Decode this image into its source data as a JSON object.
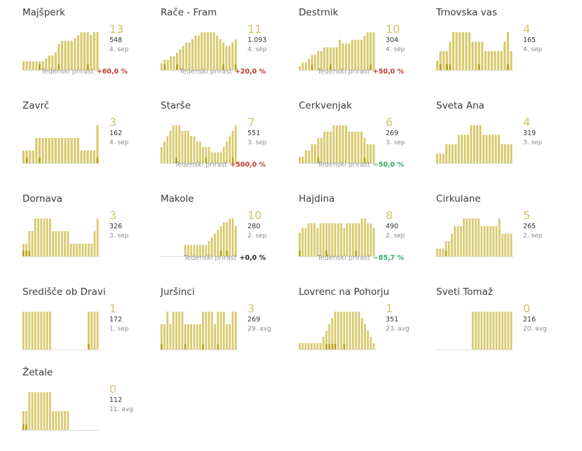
{
  "colors": {
    "bar": "#d8c86a",
    "highlight": "#b9a11a",
    "baseline": "#dddddd"
  },
  "chart_data": [
    {
      "type": "bar",
      "title": "Majšperk",
      "latest": "13",
      "total": "548",
      "date": "4. sep",
      "growth_label": "Tedenski prirast",
      "growth_value": "+60,0 %",
      "growth_sign": "pos",
      "values": [
        3,
        3,
        3,
        3,
        3,
        3,
        3,
        4,
        5,
        5,
        6,
        9,
        10,
        10,
        10,
        10,
        11,
        12,
        13,
        13,
        13,
        12,
        13,
        13
      ],
      "highlight": [
        0,
        0,
        0,
        0,
        0,
        1,
        0,
        0,
        0,
        0,
        0,
        1,
        0,
        0,
        0,
        0,
        0,
        0,
        0,
        0,
        1,
        0,
        0,
        0
      ]
    },
    {
      "type": "bar",
      "title": "Rače - Fram",
      "latest": "11",
      "total": "1.093",
      "date": "4. sep",
      "growth_label": "Tedenski prirast",
      "growth_value": "+20,0 %",
      "growth_sign": "pos",
      "values": [
        2,
        3,
        3,
        4,
        4,
        5,
        6,
        7,
        8,
        8,
        9,
        10,
        10,
        11,
        11,
        11,
        11,
        11,
        10,
        9,
        8,
        7,
        7,
        8,
        9
      ],
      "highlight": [
        0,
        1,
        0,
        0,
        0,
        1,
        0,
        0,
        0,
        0,
        0,
        0,
        0,
        0,
        0,
        0,
        0,
        0,
        0,
        0,
        1,
        0,
        0,
        0,
        1
      ]
    },
    {
      "type": "bar",
      "title": "Destrnik",
      "latest": "10",
      "total": "304",
      "date": "4. sep",
      "growth_label": "Tedenski prirast",
      "growth_value": "+50,0 %",
      "growth_sign": "pos",
      "values": [
        1,
        2,
        2,
        3,
        4,
        4,
        5,
        5,
        6,
        6,
        6,
        6,
        6,
        8,
        7,
        7,
        7,
        8,
        8,
        8,
        8,
        9,
        10,
        10,
        10
      ],
      "highlight": [
        0,
        0,
        0,
        0,
        1,
        0,
        0,
        0,
        0,
        0,
        1,
        0,
        0,
        0,
        0,
        0,
        0,
        0,
        0,
        0,
        0,
        0,
        0,
        1,
        0
      ]
    },
    {
      "type": "bar",
      "title": "Trnovska vas",
      "latest": "4",
      "total": "165",
      "date": "4. sep",
      "growth_label": "",
      "growth_value": "",
      "growth_sign": "",
      "values": [
        1,
        2,
        2,
        2,
        3,
        4,
        4,
        4,
        4,
        4,
        4,
        3,
        3,
        3,
        3,
        2,
        2,
        2,
        2,
        2,
        2,
        3,
        4,
        2
      ],
      "highlight": [
        0,
        1,
        0,
        1,
        1,
        0,
        0,
        0,
        0,
        0,
        0,
        0,
        0,
        1,
        0,
        0,
        0,
        0,
        0,
        0,
        0,
        0,
        1,
        0
      ]
    },
    {
      "type": "bar",
      "title": "Zavrč",
      "latest": "3",
      "total": "162",
      "date": "4. sep",
      "growth_label": "",
      "growth_value": "",
      "growth_sign": "",
      "values": [
        1,
        1,
        1,
        1,
        2,
        2,
        2,
        2,
        2,
        2,
        2,
        2,
        2,
        2,
        2,
        2,
        2,
        2,
        1,
        1,
        1,
        1,
        1,
        3
      ],
      "highlight": [
        0,
        1,
        0,
        0,
        0,
        1,
        0,
        0,
        0,
        0,
        0,
        0,
        0,
        0,
        0,
        0,
        0,
        0,
        0,
        0,
        0,
        0,
        0,
        1
      ]
    },
    {
      "type": "bar",
      "title": "Starše",
      "latest": "7",
      "total": "551",
      "date": "3. sep",
      "growth_label": "Tedenski prirast",
      "growth_value": "+500,0 %",
      "growth_sign": "pos",
      "values": [
        3,
        4,
        5,
        6,
        7,
        7,
        7,
        6,
        6,
        6,
        5,
        5,
        4,
        4,
        3,
        3,
        3,
        2,
        2,
        2,
        2,
        3,
        4,
        5,
        6,
        7
      ],
      "highlight": [
        0,
        0,
        0,
        0,
        0,
        1,
        0,
        0,
        0,
        0,
        0,
        0,
        0,
        0,
        0,
        1,
        0,
        0,
        0,
        0,
        0,
        0,
        0,
        0,
        1,
        0
      ]
    },
    {
      "type": "bar",
      "title": "Cerkvenjak",
      "latest": "6",
      "total": "269",
      "date": "3. sep",
      "growth_label": "Tedenski prirast",
      "growth_value": "−50,0 %",
      "growth_sign": "neg",
      "values": [
        1,
        1,
        2,
        2,
        3,
        3,
        4,
        4,
        5,
        5,
        5,
        6,
        6,
        6,
        6,
        6,
        5,
        5,
        5,
        5,
        5,
        4,
        3,
        3,
        3
      ],
      "highlight": [
        0,
        0,
        0,
        0,
        0,
        0,
        1,
        0,
        0,
        0,
        0,
        0,
        0,
        0,
        0,
        0,
        0,
        0,
        0,
        0,
        0,
        1,
        0,
        0,
        0
      ]
    },
    {
      "type": "bar",
      "title": "Sveta Ana",
      "latest": "4",
      "total": "319",
      "date": "3. sep",
      "growth_label": "",
      "growth_value": "",
      "growth_sign": "",
      "values": [
        1,
        1,
        1,
        2,
        2,
        2,
        2,
        3,
        3,
        3,
        3,
        4,
        4,
        4,
        4,
        3,
        3,
        3,
        3,
        3,
        3,
        2,
        2,
        2,
        2
      ],
      "highlight": [
        0,
        0,
        0,
        0,
        0,
        0,
        0,
        0,
        0,
        0,
        0,
        0,
        0,
        0,
        0,
        0,
        0,
        0,
        0,
        0,
        0,
        0,
        0,
        0,
        0
      ]
    },
    {
      "type": "bar",
      "title": "Dornava",
      "latest": "3",
      "total": "326",
      "date": "3. sep",
      "growth_label": "",
      "growth_value": "",
      "growth_sign": "",
      "values": [
        1,
        1,
        2,
        2,
        3,
        3,
        3,
        3,
        3,
        3,
        2,
        2,
        2,
        2,
        2,
        2,
        1,
        1,
        1,
        1,
        1,
        1,
        1,
        1,
        2,
        3
      ],
      "highlight": [
        1,
        1,
        1,
        0,
        0,
        0,
        0,
        0,
        0,
        0,
        0,
        0,
        0,
        0,
        0,
        0,
        0,
        0,
        0,
        0,
        0,
        0,
        0,
        0,
        0,
        0
      ]
    },
    {
      "type": "bar",
      "title": "Makole",
      "latest": "10",
      "total": "280",
      "date": "2. sep",
      "growth_label": "Tedenski prirast",
      "growth_value": "+0,0 %",
      "growth_sign": "zero",
      "values": [
        0,
        0,
        0,
        0,
        0,
        0,
        0,
        0,
        3,
        3,
        3,
        3,
        3,
        3,
        3,
        3,
        4,
        5,
        6,
        7,
        8,
        9,
        9,
        10,
        10,
        8
      ],
      "highlight": [
        0,
        0,
        0,
        0,
        0,
        0,
        0,
        0,
        0,
        0,
        0,
        0,
        0,
        0,
        0,
        0,
        0,
        0,
        0,
        0,
        1,
        0,
        1,
        0,
        0,
        0
      ]
    },
    {
      "type": "bar",
      "title": "Hajdina",
      "latest": "8",
      "total": "490",
      "date": "2. sep",
      "growth_label": "Tedenski prirast",
      "growth_value": "−85,7 %",
      "growth_sign": "neg",
      "values": [
        5,
        6,
        6,
        7,
        7,
        7,
        6,
        7,
        7,
        7,
        7,
        7,
        7,
        7,
        7,
        6,
        7,
        7,
        7,
        7,
        7,
        8,
        8,
        7,
        7,
        6
      ],
      "highlight": [
        1,
        0,
        0,
        0,
        0,
        0,
        0,
        0,
        0,
        1,
        0,
        0,
        0,
        0,
        0,
        0,
        0,
        0,
        0,
        1,
        0,
        0,
        0,
        0,
        0,
        0
      ]
    },
    {
      "type": "bar",
      "title": "Cirkulane",
      "latest": "5",
      "total": "265",
      "date": "2. sep",
      "growth_label": "",
      "growth_value": "",
      "growth_sign": "",
      "values": [
        1,
        1,
        1,
        2,
        2,
        3,
        4,
        4,
        4,
        5,
        5,
        5,
        5,
        5,
        5,
        4,
        4,
        4,
        4,
        4,
        4,
        5,
        3,
        3,
        3,
        3
      ],
      "highlight": [
        0,
        0,
        0,
        1,
        0,
        0,
        0,
        0,
        0,
        0,
        0,
        0,
        0,
        0,
        0,
        0,
        0,
        0,
        0,
        0,
        0,
        0,
        0,
        0,
        0,
        0
      ]
    },
    {
      "type": "bar",
      "title": "Središče ob Dravi",
      "latest": "1",
      "total": "172",
      "date": "1. sep",
      "growth_label": "",
      "growth_value": "",
      "growth_sign": "",
      "values": [
        1,
        1,
        1,
        1,
        1,
        1,
        1,
        1,
        1,
        1,
        0,
        0,
        0,
        0,
        0,
        0,
        0,
        0,
        0,
        0,
        0,
        0,
        1,
        1,
        1,
        1
      ],
      "highlight": [
        0,
        0,
        0,
        0,
        0,
        0,
        0,
        0,
        0,
        0,
        0,
        0,
        0,
        0,
        0,
        0,
        0,
        0,
        0,
        0,
        0,
        0,
        1,
        0,
        0,
        0
      ]
    },
    {
      "type": "bar",
      "title": "Juršinci",
      "latest": "3",
      "total": "269",
      "date": "29. avg",
      "growth_label": "",
      "growth_value": "",
      "growth_sign": "",
      "values": [
        2,
        2,
        3,
        2,
        3,
        3,
        3,
        3,
        2,
        2,
        2,
        2,
        2,
        2,
        3,
        3,
        3,
        3,
        2,
        3,
        3,
        3,
        2,
        2,
        3,
        3
      ],
      "highlight": [
        1,
        0,
        0,
        0,
        0,
        0,
        0,
        0,
        1,
        0,
        0,
        0,
        0,
        0,
        1,
        0,
        0,
        0,
        0,
        1,
        0,
        0,
        0,
        0,
        0,
        0
      ]
    },
    {
      "type": "bar",
      "title": "Lovrenc na Pohorju",
      "latest": "1",
      "total": "351",
      "date": "23. avg",
      "growth_label": "",
      "growth_value": "",
      "growth_sign": "",
      "values": [
        1,
        1,
        1,
        1,
        1,
        1,
        1,
        1,
        2,
        3,
        4,
        5,
        6,
        6,
        6,
        6,
        6,
        6,
        6,
        6,
        6,
        5,
        4,
        3,
        2,
        1
      ],
      "highlight": [
        0,
        0,
        0,
        0,
        0,
        0,
        0,
        0,
        0,
        1,
        1,
        1,
        1,
        0,
        0,
        1,
        0,
        0,
        0,
        0,
        0,
        0,
        0,
        0,
        0,
        0
      ]
    },
    {
      "type": "bar",
      "title": "Sveti Tomaž",
      "latest": "0",
      "total": "216",
      "date": "20. avg",
      "growth_label": "",
      "growth_value": "",
      "growth_sign": "",
      "values": [
        0,
        0,
        0,
        0,
        0,
        0,
        0,
        0,
        0,
        0,
        0,
        0,
        1,
        1,
        1,
        1,
        1,
        1,
        1,
        1,
        1,
        1,
        1,
        1,
        1,
        1
      ],
      "highlight": [
        0,
        0,
        0,
        0,
        0,
        0,
        0,
        0,
        0,
        0,
        0,
        0,
        0,
        0,
        0,
        0,
        0,
        0,
        0,
        0,
        0,
        0,
        0,
        0,
        0,
        0
      ]
    },
    {
      "type": "bar",
      "title": "Žetale",
      "latest": "0",
      "total": "112",
      "date": "11. avg",
      "growth_label": "",
      "growth_value": "",
      "growth_sign": "",
      "values": [
        1,
        1,
        2,
        2,
        2,
        2,
        2,
        2,
        2,
        2,
        1,
        1,
        1,
        1,
        1,
        1,
        0,
        0,
        0,
        0,
        0,
        0,
        0,
        0,
        0,
        0
      ],
      "highlight": [
        1,
        1,
        0,
        0,
        0,
        0,
        0,
        0,
        0,
        0,
        0,
        0,
        0,
        0,
        0,
        0,
        0,
        0,
        0,
        0,
        0,
        0,
        0,
        0,
        0,
        0
      ]
    }
  ]
}
